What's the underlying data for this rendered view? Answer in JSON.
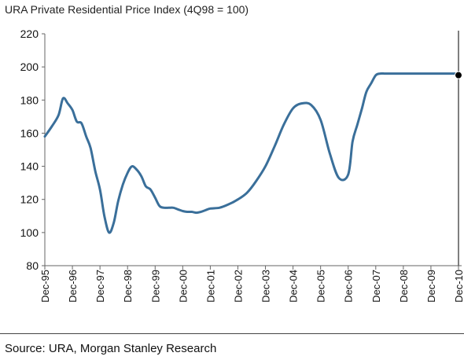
{
  "chart_data": {
    "type": "line",
    "title": "URA Private Residential Price Index (4Q98 = 100)",
    "xlabel": "",
    "ylabel": "",
    "ylim": [
      80,
      220
    ],
    "yticks": [
      "80",
      "100",
      "120",
      "140",
      "160",
      "180",
      "200",
      "220"
    ],
    "xlim": [
      1995.92,
      2010.92
    ],
    "xticks": [
      "Dec-95",
      "Dec-96",
      "Dec-97",
      "Dec-98",
      "Dec-99",
      "Dec-00",
      "Dec-01",
      "Dec-02",
      "Dec-03",
      "Dec-04",
      "Dec-05",
      "Dec-06",
      "Dec-07",
      "Dec-08",
      "Dec-09",
      "Dec-10"
    ],
    "grid": false,
    "legend": "none",
    "series_color": "#3a6f9a",
    "marker_color": "#000000",
    "marker_line_color": "#555555",
    "series": [
      {
        "x": [
          1995.92,
          1996.17,
          1996.42,
          1996.58,
          1996.75,
          1996.92,
          1997.08,
          1997.25,
          1997.42,
          1997.58,
          1997.75,
          1997.92,
          1998.08,
          1998.25,
          1998.42,
          1998.58,
          1998.75,
          1998.92,
          1999.08,
          1999.25,
          1999.42,
          1999.58,
          1999.75,
          1999.92,
          2000.08,
          2000.25,
          2000.42,
          2000.58,
          2000.75,
          2000.92,
          2001.08,
          2001.25,
          2001.42,
          2001.58,
          2001.75,
          2001.92,
          2002.25,
          2002.58,
          2002.92,
          2003.25,
          2003.58,
          2003.92,
          2004.25,
          2004.58,
          2004.92,
          2005.25,
          2005.58,
          2005.92,
          2006.25,
          2006.58,
          2006.92,
          2007.08,
          2007.25,
          2007.42,
          2007.58,
          2007.75,
          2007.92,
          2008.08,
          2008.25,
          2008.42,
          2008.58,
          2008.75,
          2008.92,
          2009.08,
          2009.25,
          2009.42,
          2009.58,
          2009.75,
          2009.92,
          2010.25,
          2010.58,
          2010.92
        ],
        "values": [
          158,
          164,
          171,
          181,
          178,
          174,
          167,
          166,
          158,
          151,
          137,
          126,
          110,
          100,
          106,
          119,
          129,
          136,
          140,
          138,
          134,
          128,
          126,
          121,
          116,
          115,
          115,
          115,
          114,
          113,
          112.5,
          112.5,
          112,
          112.5,
          113.5,
          114.5,
          115,
          117,
          120,
          124,
          131,
          140,
          152,
          165,
          175,
          178,
          177,
          168,
          148,
          133,
          135,
          155,
          165,
          175,
          185,
          190,
          195,
          196,
          196,
          196,
          196,
          196,
          196,
          196,
          196,
          196,
          196,
          196,
          196,
          196,
          196,
          196
        ]
      }
    ],
    "marker": {
      "x": 2010.92,
      "y": 195
    }
  },
  "source": "Source: URA, Morgan Stanley Research"
}
